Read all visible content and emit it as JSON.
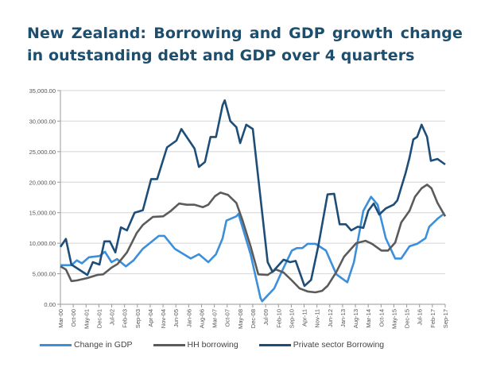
{
  "chart_data": {
    "type": "line",
    "title": "New Zealand: Borrowing and GDP growth change in outstanding debt and GDP over 4 quarters",
    "xlabel": "",
    "ylabel": "",
    "x_unit": "quarters since Mar-00",
    "x_range": [
      0,
      70
    ],
    "ylim": [
      0,
      35000
    ],
    "yticks": [
      "0.00",
      "5,000.00",
      "10,000.00",
      "15,000.00",
      "20,000.00",
      "25,000.00",
      "30,000.00",
      "35,000.00"
    ],
    "ytick_values": [
      0,
      5000,
      10000,
      15000,
      20000,
      25000,
      30000,
      35000
    ],
    "xticks": [
      "Mar-00",
      "Oct-00",
      "May-01",
      "Dec-01",
      "Jul-02",
      "Feb-03",
      "Sep-03",
      "Apr-04",
      "Nov-04",
      "Jun-05",
      "Jan-06",
      "Aug-06",
      "Mar-07",
      "Oct-07",
      "May-08",
      "Dec-08",
      "Jul-09",
      "Feb-10",
      "Sep-10",
      "Apr-11",
      "Nov-11",
      "Jun-12",
      "Jan-13",
      "Aug-13",
      "Mar-14",
      "Oct-14",
      "May-15",
      "Dec-15",
      "Jul-16",
      "Feb-17",
      "Sep-17"
    ],
    "grid": true,
    "legend_position": "bottom",
    "series": [
      {
        "name": "Change in GDP",
        "color": "#3b8fdb",
        "x": [
          0,
          2,
          3,
          3.9,
          5.2,
          7.1,
          8.1,
          9.3,
          10.3,
          11.9,
          13.3,
          15,
          17.9,
          18.9,
          20.8,
          23.7,
          25.2,
          26.9,
          28.3,
          29.5,
          30.2,
          32,
          32.4,
          34.6,
          36.4,
          36.7,
          38.9,
          40.4,
          42.1,
          43,
          44,
          45,
          46.4,
          48.3,
          50.2,
          52.2,
          53.4,
          55.1,
          56.5,
          57.7,
          59.2,
          60.9,
          62,
          63.5,
          64.9,
          66.4,
          67.1,
          68.6,
          69.6
        ],
        "y": [
          6400,
          6400,
          7200,
          6700,
          7700,
          7900,
          8600,
          6900,
          7400,
          6200,
          7200,
          9100,
          11200,
          11200,
          9100,
          7500,
          8200,
          6900,
          8200,
          10800,
          13700,
          14400,
          14800,
          8200,
          1000,
          500,
          2600,
          5600,
          8800,
          9200,
          9200,
          9900,
          9900,
          8800,
          4900,
          3600,
          6900,
          15300,
          17600,
          16300,
          10800,
          7500,
          7500,
          9500,
          9900,
          10800,
          12700,
          14000,
          14700
        ]
      },
      {
        "name": "HH borrowing",
        "color": "#5b5b5b",
        "x": [
          0,
          1,
          2,
          3,
          4.9,
          6.7,
          7.8,
          9.3,
          10.4,
          12.1,
          13.9,
          15,
          16.8,
          18.7,
          20.1,
          21.6,
          23,
          24.4,
          25.9,
          26.9,
          28.1,
          29.1,
          30.5,
          32,
          33.1,
          34.6,
          36,
          37.7,
          39.2,
          40.6,
          42.1,
          43.5,
          45,
          46.4,
          47.6,
          48.6,
          50.2,
          51.6,
          53.8,
          55.5,
          56.7,
          58.4,
          59.6,
          60.9,
          62,
          63.5,
          64.5,
          65.7,
          66.7,
          67.5,
          68.6,
          70
        ],
        "y": [
          6200,
          5700,
          3800,
          3900,
          4300,
          4800,
          4900,
          6000,
          6600,
          8500,
          11700,
          13000,
          14300,
          14400,
          15300,
          16500,
          16300,
          16300,
          15900,
          16300,
          17700,
          18300,
          17900,
          16600,
          13800,
          9500,
          4900,
          4800,
          5700,
          5200,
          3900,
          2600,
          2100,
          1950,
          2200,
          3000,
          5300,
          7800,
          10000,
          10400,
          9900,
          8800,
          8800,
          10100,
          13400,
          15300,
          17600,
          19000,
          19600,
          19000,
          16600,
          14400
        ]
      },
      {
        "name": "Private sector Borrowing",
        "color": "#1e4d78",
        "x": [
          0,
          1,
          2,
          4.9,
          5.9,
          7.1,
          8,
          9,
          10,
          11,
          12.1,
          13.5,
          15,
          16.5,
          17.6,
          19.4,
          21.1,
          22,
          24.4,
          25.2,
          26.3,
          27.3,
          28.3,
          29.5,
          29.9,
          30.9,
          32,
          32.7,
          33.8,
          35,
          37.7,
          38.6,
          40.6,
          41.8,
          42.8,
          44.4,
          45.6,
          46.9,
          48.6,
          49.8,
          50.8,
          51.9,
          52.9,
          54.1,
          55.1,
          56,
          57,
          58,
          59.2,
          60.6,
          61.3,
          62.8,
          63.5,
          64.2,
          64.9,
          65.7,
          66.7,
          67.4,
          68.6,
          70
        ],
        "y": [
          9400,
          10700,
          6500,
          4800,
          6900,
          6500,
          10300,
          10300,
          8500,
          12600,
          12100,
          15000,
          15400,
          20500,
          20500,
          25700,
          26800,
          28700,
          25500,
          22500,
          23300,
          27400,
          27400,
          32600,
          33400,
          30000,
          29000,
          26400,
          29400,
          28700,
          6900,
          5300,
          7300,
          6900,
          7100,
          3000,
          4000,
          9500,
          18000,
          18100,
          13100,
          13100,
          12100,
          12700,
          12500,
          15300,
          16500,
          14700,
          15700,
          16300,
          17000,
          21500,
          24000,
          27000,
          27400,
          29400,
          27400,
          23500,
          23800,
          22900
        ]
      }
    ]
  }
}
